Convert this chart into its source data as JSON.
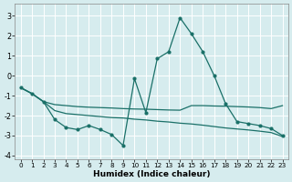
{
  "xlabel": "Humidex (Indice chaleur)",
  "bg_color": "#d6ecee",
  "grid_color": "#ffffff",
  "line_color": "#1a7068",
  "xlim_min": -0.5,
  "xlim_max": 23.5,
  "ylim_min": -4.2,
  "ylim_max": 3.6,
  "yticks": [
    -4,
    -3,
    -2,
    -1,
    0,
    1,
    2,
    3
  ],
  "xticks": [
    0,
    1,
    2,
    3,
    4,
    5,
    6,
    7,
    8,
    9,
    10,
    11,
    12,
    13,
    14,
    15,
    16,
    17,
    18,
    19,
    20,
    21,
    22,
    23
  ],
  "spiky_x": [
    0,
    1,
    2,
    3,
    4,
    5,
    6,
    7,
    8,
    9,
    10,
    11,
    12,
    13,
    14,
    15,
    16,
    17,
    18,
    19,
    20,
    21,
    22,
    23
  ],
  "spiky_y": [
    -0.6,
    -0.9,
    -1.3,
    -2.2,
    -2.6,
    -2.7,
    -2.5,
    -2.7,
    -2.95,
    -3.5,
    -0.15,
    -1.85,
    0.85,
    1.2,
    2.9,
    2.1,
    1.2,
    0.0,
    -1.4,
    -2.3,
    -2.4,
    -2.5,
    -2.65,
    -3.0
  ],
  "upper_x": [
    0,
    1,
    2,
    3,
    4,
    5,
    6,
    7,
    8,
    9,
    10,
    11,
    12,
    13,
    14,
    15,
    16,
    17,
    18,
    19,
    20,
    21,
    22,
    23
  ],
  "upper_y": [
    -0.6,
    -0.9,
    -1.3,
    -1.45,
    -1.5,
    -1.55,
    -1.58,
    -1.6,
    -1.62,
    -1.65,
    -1.67,
    -1.68,
    -1.7,
    -1.72,
    -1.73,
    -1.5,
    -1.5,
    -1.52,
    -1.53,
    -1.55,
    -1.57,
    -1.6,
    -1.65,
    -1.5
  ],
  "lower_x": [
    0,
    1,
    2,
    3,
    4,
    5,
    6,
    7,
    8,
    9,
    10,
    11,
    12,
    13,
    14,
    15,
    16,
    17,
    18,
    19,
    20,
    21,
    22,
    23
  ],
  "lower_y": [
    -0.6,
    -0.9,
    -1.3,
    -1.75,
    -1.9,
    -1.95,
    -2.0,
    -2.05,
    -2.1,
    -2.12,
    -2.18,
    -2.22,
    -2.28,
    -2.32,
    -2.38,
    -2.42,
    -2.48,
    -2.55,
    -2.62,
    -2.67,
    -2.72,
    -2.78,
    -2.85,
    -3.05
  ],
  "xlabel_fontsize": 6.5,
  "tick_fontsize": 5.2,
  "ytick_fontsize": 5.8
}
